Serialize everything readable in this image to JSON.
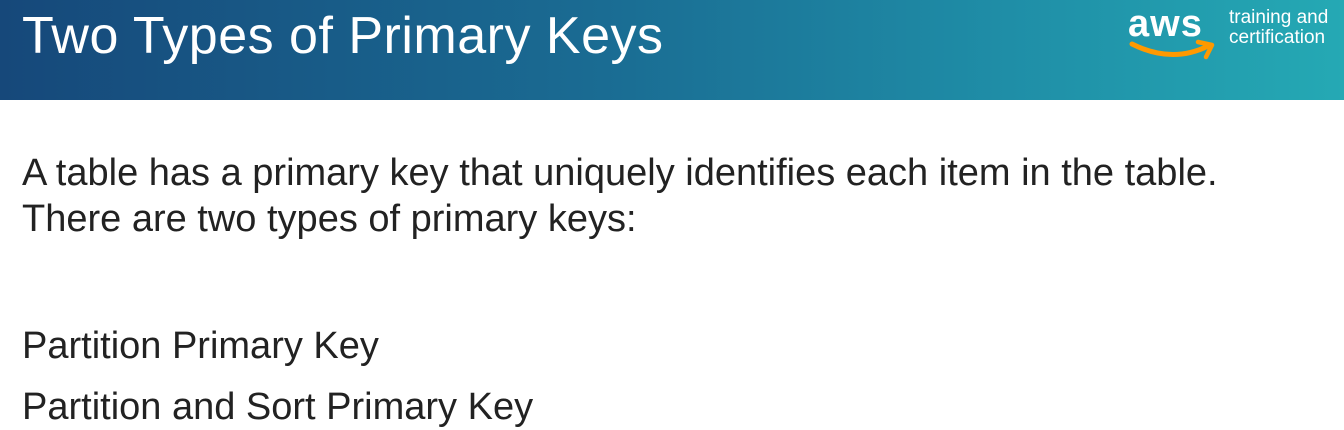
{
  "slide": {
    "title": "Two Types of Primary Keys",
    "logo": {
      "wordmark": "aws",
      "subtitle_line1": "training and",
      "subtitle_line2": "certification"
    },
    "intro_line1": "A table has a primary key that uniquely identifies each item in the table.",
    "intro_line2": "There are two types of primary keys:",
    "key_types": [
      "Partition Primary Key",
      "Partition and Sort Primary Key"
    ]
  },
  "colors": {
    "header_start": "#16487a",
    "header_end": "#25a9b4",
    "logo_smile": "#ff9900",
    "body_text": "#222222"
  }
}
